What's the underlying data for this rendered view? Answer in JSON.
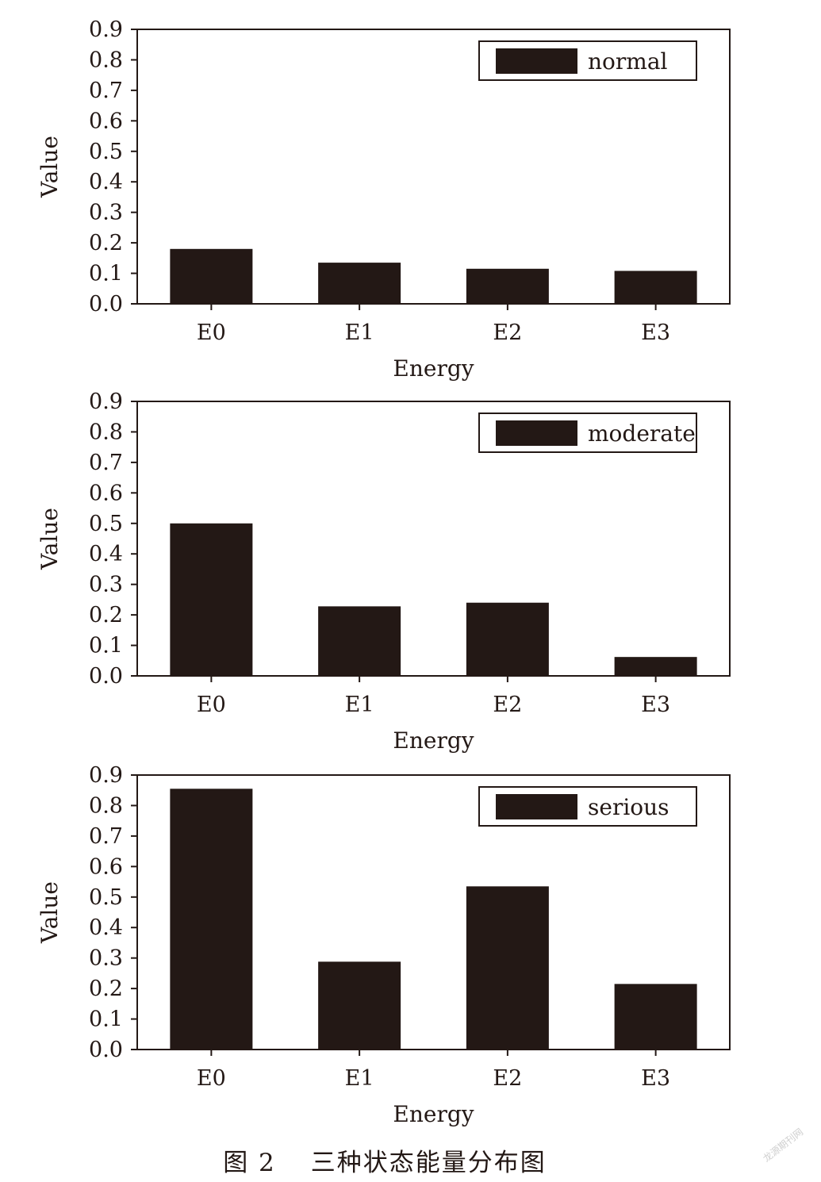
{
  "colors": {
    "bar": "#231815",
    "axis": "#231815",
    "legend_border": "#231815"
  },
  "chart_data": [
    {
      "type": "bar",
      "categories": [
        "E0",
        "E1",
        "E2",
        "E3"
      ],
      "series": [
        {
          "name": "normal",
          "values": [
            0.18,
            0.135,
            0.115,
            0.108
          ]
        }
      ],
      "xlabel": "Energy",
      "ylabel": "Value",
      "ylim": [
        0,
        0.9
      ],
      "yticks": [
        "0.0",
        "0.1",
        "0.2",
        "0.3",
        "0.4",
        "0.5",
        "0.6",
        "0.7",
        "0.8",
        "0.9"
      ],
      "grid": false,
      "legend_position": "top-right"
    },
    {
      "type": "bar",
      "categories": [
        "E0",
        "E1",
        "E2",
        "E3"
      ],
      "series": [
        {
          "name": "moderate",
          "values": [
            0.5,
            0.228,
            0.24,
            0.062
          ]
        }
      ],
      "xlabel": "Energy",
      "ylabel": "Value",
      "ylim": [
        0,
        0.9
      ],
      "yticks": [
        "0.0",
        "0.1",
        "0.2",
        "0.3",
        "0.4",
        "0.5",
        "0.6",
        "0.7",
        "0.8",
        "0.9"
      ],
      "grid": false,
      "legend_position": "top-right"
    },
    {
      "type": "bar",
      "categories": [
        "E0",
        "E1",
        "E2",
        "E3"
      ],
      "series": [
        {
          "name": "serious",
          "values": [
            0.855,
            0.288,
            0.535,
            0.215
          ]
        }
      ],
      "xlabel": "Energy",
      "ylabel": "Value",
      "ylim": [
        0,
        0.9
      ],
      "yticks": [
        "0.0",
        "0.1",
        "0.2",
        "0.3",
        "0.4",
        "0.5",
        "0.6",
        "0.7",
        "0.8",
        "0.9"
      ],
      "grid": false,
      "legend_position": "top-right"
    }
  ],
  "caption": {
    "figure_number": "图 2",
    "title": "三种状态能量分布图"
  },
  "watermark": "龙源期刊网"
}
